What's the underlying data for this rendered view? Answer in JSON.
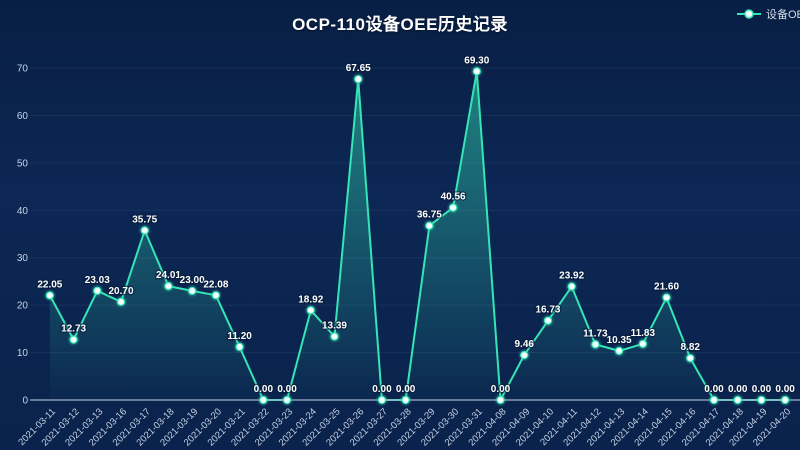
{
  "header": {
    "title": "OCP-110设备OEE历史记录"
  },
  "legend": {
    "label": "设备OEE"
  },
  "colors": {
    "line": "#35e5b5",
    "marker_fill": "#f2fffb",
    "marker_ring": "#35e5b5",
    "value_label": "#ffffff",
    "axis_label": "#c8d3e6",
    "axis_line": "#9fb0c9",
    "grid_line": "rgba(140,170,210,0.10)",
    "area_top": "rgba(53,229,181,0.50)",
    "area_bottom": "rgba(53,229,181,0.02)",
    "background": "#0a2450"
  },
  "chart_data": {
    "type": "line",
    "title": "OCP-110设备OEE历史记录",
    "series_name": "设备OEE",
    "legend_position": "top-right",
    "grid": true,
    "xlabel": "",
    "ylabel": "",
    "ylim": [
      0,
      70
    ],
    "y_ticks": [
      0,
      10,
      20,
      30,
      40,
      50,
      60,
      70
    ],
    "x": [
      "2021-03-11",
      "2021-03-12",
      "2021-03-13",
      "2021-03-16",
      "2021-03-17",
      "2021-03-18",
      "2021-03-19",
      "2021-03-20",
      "2021-03-21",
      "2021-03-22",
      "2021-03-23",
      "2021-03-24",
      "2021-03-25",
      "2021-03-26",
      "2021-03-27",
      "2021-03-28",
      "2021-03-29",
      "2021-03-30",
      "2021-03-31",
      "2021-04-08",
      "2021-04-09",
      "2021-04-10",
      "2021-04-11",
      "2021-04-12",
      "2021-04-13",
      "2021-04-14",
      "2021-04-15",
      "2021-04-16",
      "2021-04-17",
      "2021-04-18",
      "2021-04-19",
      "2021-04-20"
    ],
    "values": [
      22.05,
      12.73,
      23.03,
      20.7,
      35.75,
      24.01,
      23.0,
      22.08,
      11.2,
      0.0,
      0.0,
      18.92,
      13.39,
      67.65,
      0.0,
      0.0,
      36.75,
      40.56,
      69.3,
      0.0,
      9.46,
      16.73,
      23.92,
      11.73,
      10.35,
      11.83,
      21.6,
      8.82,
      0.0,
      0.0,
      0.0,
      0.0
    ]
  }
}
